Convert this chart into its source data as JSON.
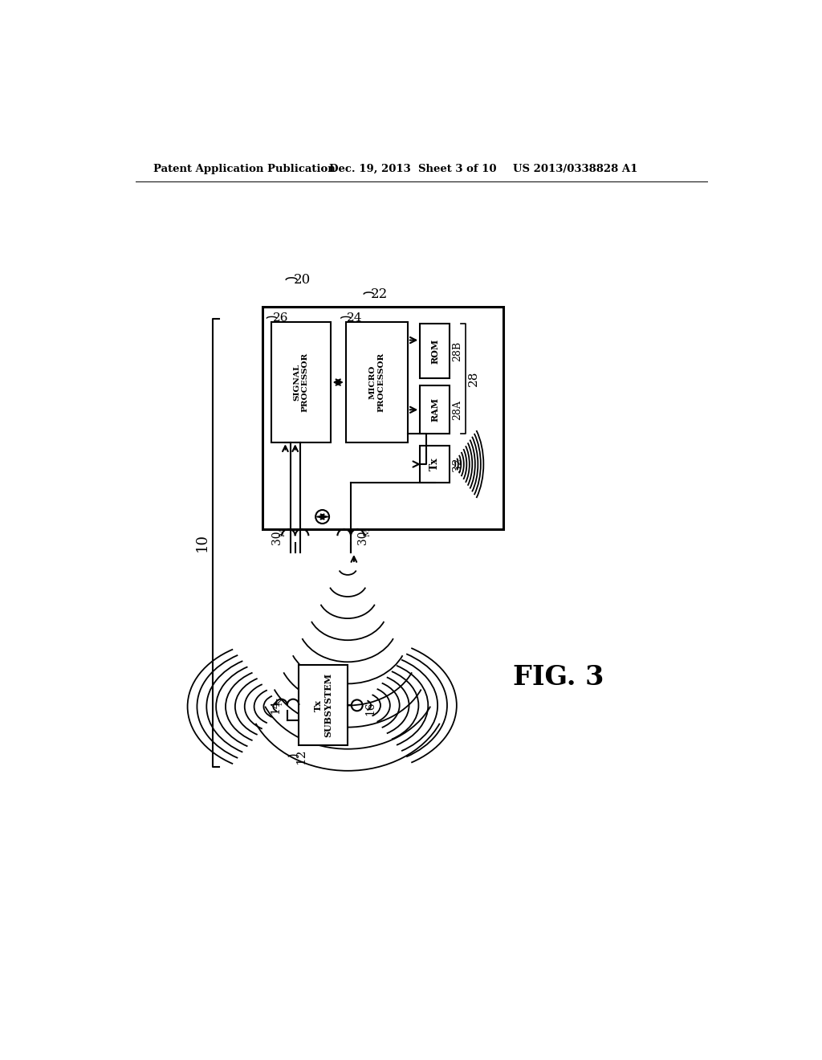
{
  "bg_color": "#ffffff",
  "header_left": "Patent Application Publication",
  "header_mid": "Dec. 19, 2013  Sheet 3 of 10",
  "header_right": "US 2013/0338828 A1",
  "fig_label": "FIG. 3"
}
